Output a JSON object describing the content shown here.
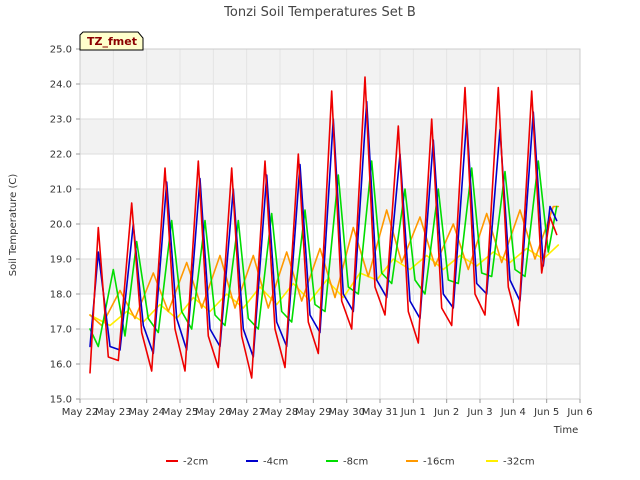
{
  "chart_data": {
    "type": "line",
    "title": "Tonzi Soil Temperatures Set B",
    "xlabel": "Time",
    "ylabel": "Soil Temperature (C)",
    "site_label": "TZ_fmet",
    "ylim": [
      15.0,
      25.0
    ],
    "xlim": [
      0,
      15
    ],
    "y_ticks": [
      "15.0",
      "16.0",
      "17.0",
      "18.0",
      "19.0",
      "20.0",
      "21.0",
      "22.0",
      "23.0",
      "24.0",
      "25.0"
    ],
    "x_ticks": [
      "May 22",
      "May 23",
      "May 24",
      "May 25",
      "May 26",
      "May 27",
      "May 28",
      "May 29",
      "May 30",
      "May 31",
      "Jun 1",
      "Jun 2",
      "Jun 3",
      "Jun 4",
      "Jun 5",
      "Jun 6"
    ],
    "grid": "horizontal bands",
    "legend_position": "bottom",
    "series": [
      {
        "name": "-2cm",
        "color": "#ee0000",
        "x": [
          0.3,
          0.55,
          0.85,
          1.15,
          1.55,
          1.85,
          2.15,
          2.55,
          2.85,
          3.15,
          3.55,
          3.85,
          4.15,
          4.55,
          4.85,
          5.15,
          5.55,
          5.85,
          6.15,
          6.55,
          6.85,
          7.15,
          7.55,
          7.85,
          8.15,
          8.55,
          8.85,
          9.15,
          9.55,
          9.85,
          10.15,
          10.55,
          10.85,
          11.15,
          11.55,
          11.85,
          12.15,
          12.55,
          12.85,
          13.15,
          13.55,
          13.85,
          14.1,
          14.3
        ],
        "y": [
          15.75,
          19.9,
          16.2,
          16.1,
          20.6,
          16.9,
          15.8,
          21.6,
          17.0,
          15.8,
          21.8,
          16.8,
          15.9,
          21.6,
          16.8,
          15.6,
          21.8,
          17.0,
          15.9,
          22.0,
          17.2,
          16.3,
          23.8,
          17.8,
          17.0,
          24.2,
          18.2,
          17.4,
          22.8,
          17.5,
          16.6,
          23.0,
          17.6,
          17.1,
          23.9,
          18.0,
          17.4,
          23.9,
          18.2,
          17.1,
          23.8,
          18.6,
          20.2,
          19.7
        ]
      },
      {
        "name": "-4cm",
        "color": "#0000cc",
        "x": [
          0.3,
          0.55,
          0.9,
          1.2,
          1.6,
          1.9,
          2.2,
          2.6,
          2.9,
          3.2,
          3.6,
          3.9,
          4.2,
          4.6,
          4.9,
          5.2,
          5.6,
          5.9,
          6.2,
          6.6,
          6.9,
          7.2,
          7.6,
          7.9,
          8.2,
          8.6,
          8.9,
          9.2,
          9.6,
          9.9,
          10.2,
          10.6,
          10.9,
          11.2,
          11.6,
          11.9,
          12.2,
          12.6,
          12.9,
          13.2,
          13.6,
          13.9,
          14.1,
          14.3
        ],
        "y": [
          16.5,
          19.2,
          16.5,
          16.4,
          20.0,
          17.1,
          16.3,
          21.2,
          17.3,
          16.4,
          21.3,
          17.0,
          16.5,
          21.0,
          17.0,
          16.2,
          21.4,
          17.2,
          16.5,
          21.7,
          17.4,
          16.9,
          23.0,
          18.0,
          17.5,
          23.5,
          18.4,
          17.9,
          22.0,
          17.8,
          17.3,
          22.4,
          18.0,
          17.6,
          23.0,
          18.3,
          18.0,
          22.7,
          18.4,
          17.8,
          23.2,
          18.8,
          20.5,
          20.1
        ]
      },
      {
        "name": "-8cm",
        "color": "#00dd00",
        "x": [
          0.3,
          0.55,
          1.0,
          1.35,
          1.7,
          2.05,
          2.35,
          2.75,
          3.05,
          3.35,
          3.75,
          4.05,
          4.35,
          4.75,
          5.05,
          5.35,
          5.75,
          6.05,
          6.35,
          6.75,
          7.05,
          7.35,
          7.75,
          8.05,
          8.35,
          8.75,
          9.05,
          9.35,
          9.75,
          10.05,
          10.35,
          10.75,
          11.05,
          11.35,
          11.75,
          12.05,
          12.35,
          12.75,
          13.05,
          13.35,
          13.75,
          14.05,
          14.3
        ],
        "y": [
          17.0,
          16.5,
          18.7,
          16.8,
          19.5,
          17.3,
          16.9,
          20.1,
          17.5,
          17.0,
          20.1,
          17.4,
          17.1,
          20.1,
          17.3,
          17.0,
          20.3,
          17.5,
          17.2,
          20.4,
          17.7,
          17.5,
          21.4,
          18.2,
          18.0,
          21.8,
          18.6,
          18.3,
          21.0,
          18.4,
          18.0,
          21.0,
          18.4,
          18.3,
          21.6,
          18.6,
          18.5,
          21.5,
          18.7,
          18.5,
          21.8,
          19.2,
          20.5
        ]
      },
      {
        "name": "-16cm",
        "color": "#ff9900",
        "x": [
          0.3,
          0.65,
          1.2,
          1.65,
          2.2,
          2.65,
          3.2,
          3.65,
          4.2,
          4.65,
          5.2,
          5.65,
          6.2,
          6.65,
          7.2,
          7.65,
          8.2,
          8.65,
          9.2,
          9.65,
          10.2,
          10.65,
          11.2,
          11.65,
          12.2,
          12.65,
          13.2,
          13.65,
          14.2,
          14.35
        ],
        "y": [
          17.4,
          17.1,
          18.1,
          17.3,
          18.6,
          17.5,
          18.9,
          17.6,
          19.1,
          17.6,
          19.1,
          17.6,
          19.2,
          17.8,
          19.3,
          17.9,
          19.9,
          18.5,
          20.4,
          18.9,
          20.2,
          18.8,
          20.0,
          18.7,
          20.3,
          18.9,
          20.4,
          19.0,
          20.5,
          20.5
        ]
      },
      {
        "name": "-32cm",
        "color": "#ffee00",
        "x": [
          0.3,
          0.9,
          1.4,
          1.9,
          2.4,
          2.9,
          3.4,
          3.9,
          4.4,
          4.9,
          5.4,
          5.9,
          6.4,
          6.9,
          7.4,
          7.9,
          8.4,
          8.9,
          9.4,
          9.9,
          10.4,
          10.9,
          11.4,
          11.9,
          12.4,
          12.9,
          13.4,
          13.9,
          14.35
        ],
        "y": [
          17.4,
          17.1,
          17.5,
          17.2,
          17.7,
          17.3,
          17.9,
          17.5,
          18.0,
          17.6,
          18.2,
          17.7,
          18.3,
          17.8,
          18.4,
          17.9,
          18.6,
          18.4,
          19.0,
          18.7,
          19.1,
          18.7,
          19.1,
          18.8,
          19.2,
          18.9,
          19.3,
          19.0,
          19.4
        ]
      }
    ]
  }
}
